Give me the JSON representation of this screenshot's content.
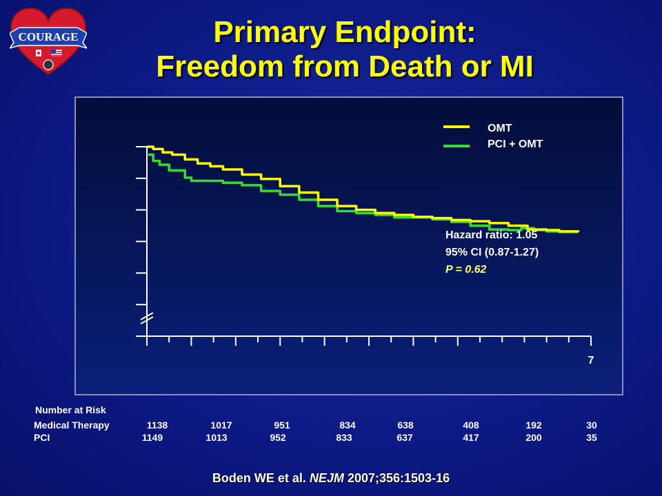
{
  "header": {
    "logo_text": "COURAGE",
    "title_line1": "Primary Endpoint:",
    "title_line2": "Freedom from Death or MI"
  },
  "legend": {
    "omt": "OMT",
    "pci": "PCI + OMT"
  },
  "stats": {
    "hazard_ratio": "Hazard ratio: 1.05",
    "ci": "95% CI (0.87-1.27)",
    "p_value": "P = 0.62"
  },
  "risk_table": {
    "heading": "Number at Risk",
    "rows": [
      {
        "label": "Medical Therapy",
        "values": [
          "1138",
          "1017",
          "951",
          "834",
          "638",
          "408",
          "192",
          "30"
        ]
      },
      {
        "label": "PCI",
        "values": [
          "1149",
          "1013",
          "952",
          "833",
          "637",
          "417",
          "200",
          "35"
        ]
      }
    ]
  },
  "citation": {
    "authors": "Boden WE et al.",
    "journal": "NEJM",
    "details": "2007;356:1503-16"
  },
  "chart_data": {
    "type": "line",
    "title": "Freedom from Death or MI",
    "xlabel": "",
    "ylabel": "",
    "x_tick_labels": [
      {
        "x": 7,
        "label": "7"
      }
    ],
    "xlim": [
      0,
      7
    ],
    "ylim": [
      0,
      6
    ],
    "y_axis_break": true,
    "legend_position": "top-right",
    "colors": {
      "omt": "#ffff00",
      "pci": "#33dd33"
    },
    "series": [
      {
        "name": "OMT",
        "x": [
          0,
          0.1,
          0.25,
          0.4,
          0.6,
          0.8,
          1.0,
          1.2,
          1.5,
          1.8,
          2.1,
          2.4,
          2.7,
          3.0,
          3.3,
          3.6,
          3.9,
          4.2,
          4.5,
          4.8,
          5.1,
          5.4,
          5.7,
          6.0,
          6.3,
          6.5,
          6.8
        ],
        "y": [
          6.0,
          5.93,
          5.82,
          5.75,
          5.6,
          5.47,
          5.38,
          5.28,
          5.12,
          4.98,
          4.75,
          4.55,
          4.32,
          4.12,
          4.0,
          3.9,
          3.84,
          3.78,
          3.74,
          3.68,
          3.64,
          3.58,
          3.5,
          3.38,
          3.36,
          3.32,
          3.3
        ]
      },
      {
        "name": "PCI + OMT",
        "x": [
          0,
          0.1,
          0.2,
          0.35,
          0.5,
          0.6,
          0.7,
          0.9,
          1.2,
          1.5,
          1.8,
          2.1,
          2.4,
          2.7,
          3.0,
          3.3,
          3.6,
          3.9,
          4.2,
          4.5,
          4.8,
          5.1,
          5.4,
          5.7,
          5.9,
          6.1,
          6.3,
          6.5,
          6.8
        ],
        "y": [
          5.75,
          5.55,
          5.43,
          5.25,
          5.25,
          5.02,
          4.92,
          4.92,
          4.86,
          4.78,
          4.6,
          4.48,
          4.32,
          4.12,
          3.96,
          3.9,
          3.84,
          3.76,
          3.76,
          3.7,
          3.62,
          3.5,
          3.38,
          3.36,
          3.42,
          3.36,
          3.32,
          3.3,
          3.3
        ]
      }
    ]
  }
}
